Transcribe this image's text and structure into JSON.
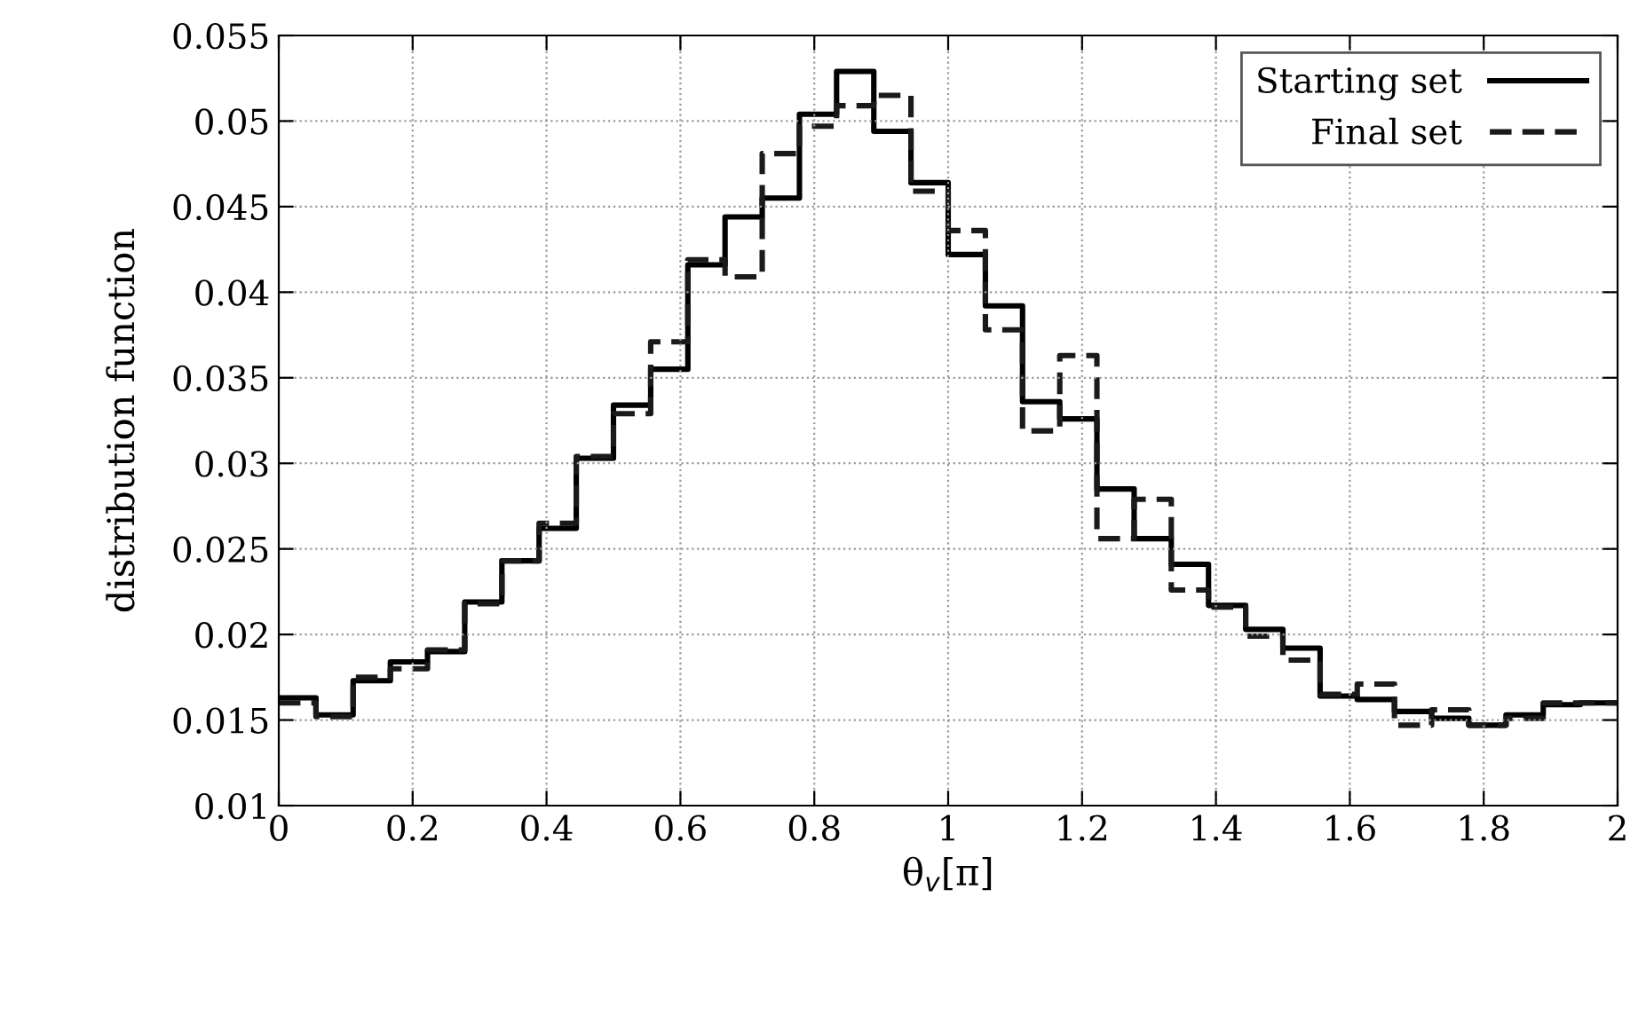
{
  "chart_data": {
    "type": "histogram",
    "xlabel": "θ$_{v}$[π]",
    "ylabel": "distribution function",
    "bins": [
      0,
      0.0556,
      0.1111,
      0.1667,
      0.2222,
      0.2778,
      0.3333,
      0.3889,
      0.4444,
      0.5,
      0.5556,
      0.6111,
      0.6667,
      0.7222,
      0.7778,
      0.8333,
      0.8889,
      0.9444,
      1,
      1.0556,
      1.1111,
      1.1667,
      1.2222,
      1.2778,
      1.3333,
      1.3889,
      1.4444,
      1.5,
      1.5556,
      1.6111,
      1.6667,
      1.7222,
      1.7778,
      1.8333,
      1.8889,
      1.9444,
      2
    ],
    "series": [
      {
        "name": "Starting set",
        "color": "#000000",
        "line_style": "solid",
        "values": [
          0.0163,
          0.0153,
          0.0173,
          0.0184,
          0.019,
          0.0219,
          0.0243,
          0.0262,
          0.0303,
          0.0334,
          0.0355,
          0.0416,
          0.0444,
          0.0455,
          0.0504,
          0.0529,
          0.0494,
          0.0464,
          0.0422,
          0.0392,
          0.0336,
          0.0326,
          0.0285,
          0.0256,
          0.0241,
          0.0217,
          0.0203,
          0.0192,
          0.0164,
          0.0162,
          0.0155,
          0.0151,
          0.0147,
          0.0153,
          0.0159,
          0.016
        ]
      },
      {
        "name": "Final set",
        "color": "#1a1a1a",
        "line_style": "dashed",
        "values": [
          0.016,
          0.0152,
          0.0175,
          0.018,
          0.0191,
          0.0218,
          0.0243,
          0.0265,
          0.0304,
          0.0329,
          0.0371,
          0.0419,
          0.0409,
          0.0481,
          0.0497,
          0.0509,
          0.0515,
          0.0459,
          0.0436,
          0.0378,
          0.0319,
          0.0363,
          0.0256,
          0.0279,
          0.0226,
          0.0216,
          0.0199,
          0.0185,
          0.0165,
          0.0171,
          0.0147,
          0.0156,
          0.0147,
          0.0151,
          0.016,
          0.016
        ]
      }
    ],
    "xlim": [
      0,
      2
    ],
    "ylim": [
      0.01,
      0.055
    ],
    "xticks": [
      0,
      0.2,
      0.4,
      0.6,
      0.8,
      1,
      1.2,
      1.4,
      1.6,
      1.8,
      2
    ],
    "yticks": [
      0.01,
      0.015,
      0.02,
      0.025,
      0.03,
      0.035,
      0.04,
      0.045,
      0.05,
      0.055
    ],
    "grid": true,
    "legend": "top right"
  }
}
